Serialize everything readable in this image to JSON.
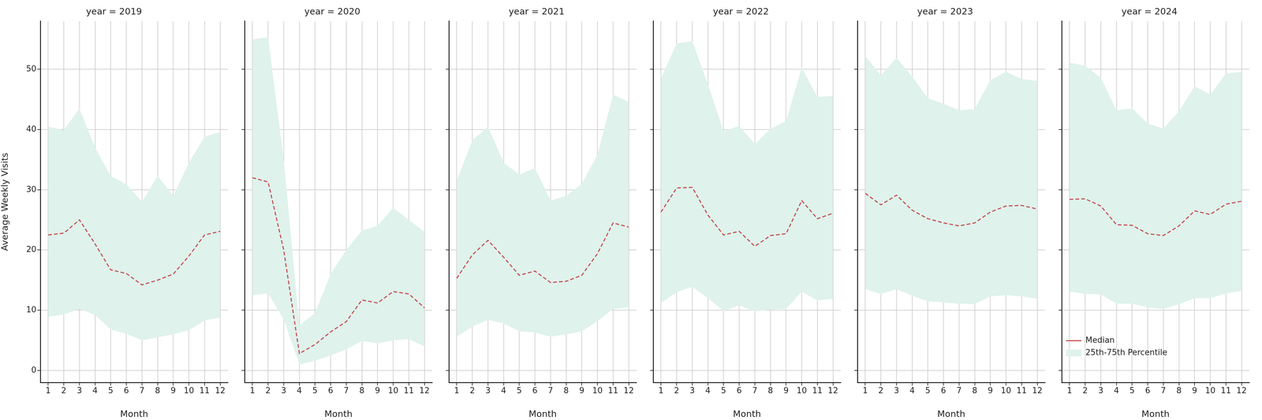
{
  "chart_data": [
    {
      "type": "line",
      "title": "year = 2019",
      "x_label": "Month",
      "y_label": "Average Weekly Visits",
      "x": [
        1,
        2,
        3,
        4,
        5,
        6,
        7,
        8,
        9,
        10,
        11,
        12
      ],
      "xlim": [
        0.5,
        12.5
      ],
      "xticks": [
        1,
        2,
        3,
        4,
        5,
        6,
        7,
        8,
        9,
        10,
        11,
        12
      ],
      "ylim": [
        -2,
        58
      ],
      "yticks": [
        0,
        10,
        20,
        30,
        40,
        50
      ],
      "grid": true,
      "series": [
        {
          "name": "Median",
          "color": "#c44e52",
          "line_style": "dashed",
          "values": [
            22.5,
            22.8,
            25,
            21,
            16.7,
            16.1,
            14.2,
            15,
            16,
            19,
            22.5,
            23.1
          ]
        },
        {
          "name": "25th-75th Percentile",
          "type": "band",
          "color": "#dff2ec",
          "lower": [
            8.9,
            9.3,
            10.2,
            9.2,
            6.8,
            6.1,
            5.0,
            5.5,
            6.0,
            6.7,
            8.3,
            8.8
          ],
          "upper": [
            40.5,
            39.9,
            43.5,
            37,
            32.3,
            30.9,
            28,
            32.3,
            29,
            34.5,
            38.8,
            39.6
          ]
        }
      ]
    },
    {
      "type": "line",
      "title": "year = 2020",
      "x_label": "Month",
      "x": [
        1,
        2,
        3,
        4,
        5,
        6,
        7,
        8,
        9,
        10,
        11,
        12
      ],
      "xlim": [
        0.5,
        12.5
      ],
      "xticks": [
        1,
        2,
        3,
        4,
        5,
        6,
        7,
        8,
        9,
        10,
        11,
        12
      ],
      "ylim": [
        -2,
        58
      ],
      "yticks": [
        0,
        10,
        20,
        30,
        40,
        50
      ],
      "grid": true,
      "tick_labels": "x",
      "series": [
        {
          "name": "Median",
          "color": "#c44e52",
          "line_style": "dashed",
          "values": [
            32,
            31.3,
            20,
            2.8,
            4.3,
            6.4,
            8.1,
            11.7,
            11.2,
            13.1,
            12.7,
            10.4
          ]
        },
        {
          "name": "25th-75th Percentile",
          "type": "band",
          "color": "#dff2ec",
          "lower": [
            12.5,
            12.8,
            8.5,
            1.0,
            1.6,
            2.5,
            3.5,
            4.9,
            4.5,
            5.0,
            5.2,
            4.0
          ],
          "upper": [
            55,
            55.3,
            35,
            7.5,
            9.5,
            16,
            20,
            23.2,
            24,
            27,
            25,
            23
          ]
        }
      ]
    },
    {
      "type": "line",
      "title": "year = 2021",
      "x_label": "Month",
      "x": [
        1,
        2,
        3,
        4,
        5,
        6,
        7,
        8,
        9,
        10,
        11,
        12
      ],
      "xlim": [
        0.5,
        12.5
      ],
      "xticks": [
        1,
        2,
        3,
        4,
        5,
        6,
        7,
        8,
        9,
        10,
        11,
        12
      ],
      "ylim": [
        -2,
        58
      ],
      "yticks": [
        0,
        10,
        20,
        30,
        40,
        50
      ],
      "grid": true,
      "tick_labels": "x",
      "series": [
        {
          "name": "Median",
          "color": "#c44e52",
          "line_style": "dashed",
          "values": [
            15.3,
            19.2,
            21.6,
            18.8,
            15.8,
            16.5,
            14.6,
            14.8,
            15.8,
            19.4,
            24.5,
            23.8
          ]
        },
        {
          "name": "25th-75th Percentile",
          "type": "band",
          "color": "#dff2ec",
          "lower": [
            5.6,
            7.3,
            8.4,
            7.8,
            6.5,
            6.3,
            5.6,
            6.0,
            6.5,
            8.2,
            10.2,
            10.5
          ],
          "upper": [
            31.5,
            38.2,
            40.5,
            34.5,
            32.5,
            33.6,
            28.2,
            29,
            31,
            35.8,
            45.8,
            44.6
          ]
        }
      ]
    },
    {
      "type": "line",
      "title": "year = 2022",
      "x_label": "Month",
      "x": [
        1,
        2,
        3,
        4,
        5,
        6,
        7,
        8,
        9,
        10,
        11,
        12
      ],
      "xlim": [
        0.5,
        12.5
      ],
      "xticks": [
        1,
        2,
        3,
        4,
        5,
        6,
        7,
        8,
        9,
        10,
        11,
        12
      ],
      "ylim": [
        -2,
        58
      ],
      "yticks": [
        0,
        10,
        20,
        30,
        40,
        50
      ],
      "grid": true,
      "tick_labels": "x",
      "series": [
        {
          "name": "Median",
          "color": "#c44e52",
          "line_style": "dashed",
          "values": [
            26.3,
            30.3,
            30.4,
            25.8,
            22.5,
            23.1,
            20.6,
            22.4,
            22.7,
            28.2,
            25.2,
            26.1
          ]
        },
        {
          "name": "25th-75th Percentile",
          "type": "band",
          "color": "#dff2ec",
          "lower": [
            11.2,
            13,
            13.9,
            12,
            9.9,
            10.8,
            9.8,
            10.1,
            10.2,
            13.1,
            11.6,
            11.9
          ],
          "upper": [
            48.5,
            54.3,
            54.7,
            47.5,
            39.7,
            40.6,
            37.6,
            40.1,
            41.4,
            50.3,
            45.4,
            45.6
          ]
        }
      ]
    },
    {
      "type": "line",
      "title": "year = 2023",
      "x_label": "Month",
      "x": [
        1,
        2,
        3,
        4,
        5,
        6,
        7,
        8,
        9,
        10,
        11,
        12
      ],
      "xlim": [
        0.5,
        12.5
      ],
      "xticks": [
        1,
        2,
        3,
        4,
        5,
        6,
        7,
        8,
        9,
        10,
        11,
        12
      ],
      "ylim": [
        -2,
        58
      ],
      "yticks": [
        0,
        10,
        20,
        30,
        40,
        50
      ],
      "grid": true,
      "tick_labels": "x",
      "series": [
        {
          "name": "Median",
          "color": "#c44e52",
          "line_style": "dashed",
          "values": [
            29.4,
            27.5,
            29.1,
            26.6,
            25.2,
            24.5,
            24,
            24.5,
            26.3,
            27.3,
            27.4,
            26.8
          ]
        },
        {
          "name": "25th-75th Percentile",
          "type": "band",
          "color": "#dff2ec",
          "lower": [
            13.5,
            12.7,
            13.5,
            12.4,
            11.5,
            11.3,
            11.1,
            11.0,
            12.3,
            12.5,
            12.3,
            11.9
          ],
          "upper": [
            52.2,
            49,
            51.9,
            48.8,
            45.2,
            44.3,
            43.2,
            43.4,
            48.2,
            49.6,
            48.4,
            48.1
          ]
        }
      ]
    },
    {
      "type": "line",
      "title": "year = 2024",
      "x_label": "Month",
      "x": [
        1,
        2,
        3,
        4,
        5,
        6,
        7,
        8,
        9,
        10,
        11,
        12
      ],
      "xlim": [
        0.5,
        12.5
      ],
      "xticks": [
        1,
        2,
        3,
        4,
        5,
        6,
        7,
        8,
        9,
        10,
        11,
        12
      ],
      "ylim": [
        -2,
        58
      ],
      "yticks": [
        0,
        10,
        20,
        30,
        40,
        50
      ],
      "grid": true,
      "tick_labels": "x",
      "legend": "upper right",
      "series": [
        {
          "name": "Median",
          "color": "#c44e52",
          "line_style": "dashed",
          "values": [
            28.4,
            28.5,
            27.3,
            24.2,
            24.1,
            22.7,
            22.4,
            24,
            26.5,
            25.9,
            27.6,
            28.1
          ]
        },
        {
          "name": "25th-75th Percentile",
          "type": "band",
          "color": "#dff2ec",
          "lower": [
            13.1,
            12.7,
            12.6,
            11.1,
            11.1,
            10.5,
            10.2,
            11.0,
            12.0,
            12.0,
            12.8,
            13.2
          ],
          "upper": [
            51.1,
            50.6,
            48.6,
            43.2,
            43.5,
            41,
            40.2,
            43,
            47.2,
            45.8,
            49.3,
            49.6
          ]
        }
      ]
    }
  ]
}
